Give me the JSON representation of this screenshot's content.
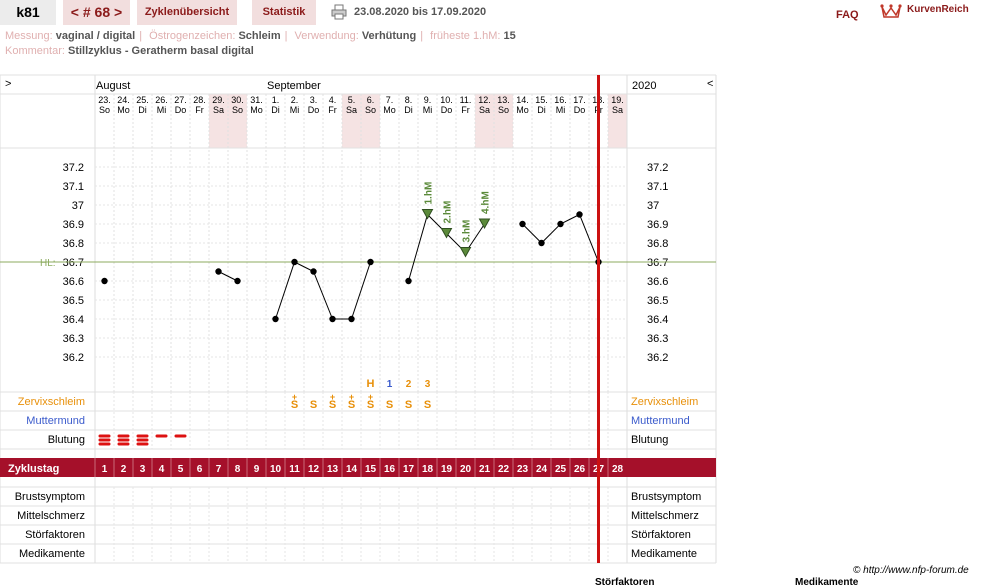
{
  "header": {
    "user": "k81",
    "cycle_nav": "< # 68 >",
    "tab_overview": "Zyklenübersicht",
    "tab_statistics": "Statistik",
    "date_range": "23.08.2020 bis 17.09.2020",
    "faq": "FAQ",
    "brand": "KurvenReich"
  },
  "info": {
    "measurement_label": "Messung:",
    "measurement_value": "vaginal / digital",
    "estrogen_label": "Östrogenzeichen:",
    "estrogen_value": "Schleim",
    "usage_label": "Verwendung:",
    "usage_value": "Verhütung",
    "earliest_label": "früheste 1.hM:",
    "earliest_value": "15",
    "comment_label": "Kommentar:",
    "comment_value": "Stillzyklus - Geratherm basal digital"
  },
  "grid": {
    "left_arrow": ">",
    "right_arrow": "<",
    "month_left": "August",
    "month_mid": "September",
    "year": "2020",
    "dates": [
      {
        "d": "23.",
        "w": "So",
        "weekend": false
      },
      {
        "d": "24.",
        "w": "Mo",
        "weekend": false
      },
      {
        "d": "25.",
        "w": "Di",
        "weekend": false
      },
      {
        "d": "26.",
        "w": "Mi",
        "weekend": false
      },
      {
        "d": "27.",
        "w": "Do",
        "weekend": false
      },
      {
        "d": "28.",
        "w": "Fr",
        "weekend": false
      },
      {
        "d": "29.",
        "w": "Sa",
        "weekend": true
      },
      {
        "d": "30.",
        "w": "So",
        "weekend": true
      },
      {
        "d": "31.",
        "w": "Mo",
        "weekend": false
      },
      {
        "d": "1.",
        "w": "Di",
        "weekend": false
      },
      {
        "d": "2.",
        "w": "Mi",
        "weekend": false
      },
      {
        "d": "3.",
        "w": "Do",
        "weekend": false
      },
      {
        "d": "4.",
        "w": "Fr",
        "weekend": false
      },
      {
        "d": "5.",
        "w": "Sa",
        "weekend": true
      },
      {
        "d": "6.",
        "w": "So",
        "weekend": true
      },
      {
        "d": "7.",
        "w": "Mo",
        "weekend": false
      },
      {
        "d": "8.",
        "w": "Di",
        "weekend": false
      },
      {
        "d": "9.",
        "w": "Mi",
        "weekend": false
      },
      {
        "d": "10.",
        "w": "Do",
        "weekend": false
      },
      {
        "d": "11.",
        "w": "Fr",
        "weekend": false
      },
      {
        "d": "12.",
        "w": "Sa",
        "weekend": true
      },
      {
        "d": "13.",
        "w": "So",
        "weekend": true
      },
      {
        "d": "14.",
        "w": "Mo",
        "weekend": false
      },
      {
        "d": "15.",
        "w": "Di",
        "weekend": false
      },
      {
        "d": "16.",
        "w": "Mi",
        "weekend": false
      },
      {
        "d": "17.",
        "w": "Do",
        "weekend": false
      },
      {
        "d": "18.",
        "w": "Fr",
        "weekend": false
      },
      {
        "d": "19.",
        "w": "Sa",
        "weekend": true
      }
    ],
    "temp_ticks": [
      "37.2",
      "37.1",
      "37",
      "36.9",
      "36.8",
      "36.7",
      "36.6",
      "36.5",
      "36.4",
      "36.3",
      "36.2"
    ],
    "hl_label": "HL:",
    "row_cervix": "Zervixschleim",
    "row_cervix_pos": "Muttermund",
    "row_bleeding": "Blutung",
    "cycle_day_label": "Zyklustag",
    "cycle_days": [
      "1",
      "2",
      "3",
      "4",
      "5",
      "6",
      "7",
      "8",
      "9",
      "10",
      "11",
      "12",
      "13",
      "14",
      "15",
      "16",
      "17",
      "18",
      "19",
      "20",
      "21",
      "22",
      "23",
      "24",
      "25",
      "26",
      "27",
      "28"
    ],
    "bottom_rows": [
      "Brustsymptom",
      "Mittelschmerz",
      "Störfaktoren",
      "Medikamente"
    ],
    "hm_labels": [
      "1.hM",
      "2.hM",
      "3.hM",
      "4.hM"
    ],
    "mucus_peak_h": "H",
    "mucus_counts": [
      "1",
      "2",
      "3"
    ],
    "mucus_symbol": "S",
    "copyright": "© http://www.nfp-forum.de",
    "footer_left": "Störfaktoren",
    "footer_right": "Medikamente"
  },
  "colors": {
    "accent": "#a5102a",
    "tab_bg": "#f2dede",
    "weekend_bg": "#f5e3e3",
    "coverline": "#8cab5f",
    "hm_green": "#5b8a3a",
    "mucus_orange": "#e8900a",
    "cervix_blue": "#3b5bcc",
    "blood_red": "#dd1111"
  },
  "chart_data": {
    "type": "line",
    "title": "",
    "xlabel": "Zyklustag",
    "ylabel": "",
    "ylim": [
      36.2,
      37.2
    ],
    "coverline": 36.7,
    "points": [
      {
        "day": 1,
        "t": 36.6
      },
      {
        "day": 7,
        "t": 36.65
      },
      {
        "day": 8,
        "t": 36.6
      },
      {
        "day": 10,
        "t": 36.4
      },
      {
        "day": 11,
        "t": 36.7
      },
      {
        "day": 12,
        "t": 36.65
      },
      {
        "day": 13,
        "t": 36.4
      },
      {
        "day": 14,
        "t": 36.4
      },
      {
        "day": 15,
        "t": 36.7
      },
      {
        "day": 17,
        "t": 36.6
      },
      {
        "day": 18,
        "t": 36.95
      },
      {
        "day": 19,
        "t": 36.85
      },
      {
        "day": 20,
        "t": 36.75
      },
      {
        "day": 21,
        "t": 36.9
      },
      {
        "day": 23,
        "t": 36.9
      },
      {
        "day": 24,
        "t": 36.8
      },
      {
        "day": 25,
        "t": 36.9
      },
      {
        "day": 26,
        "t": 36.95
      },
      {
        "day": 27,
        "t": 36.7
      }
    ],
    "segments": [
      [
        7,
        8
      ],
      [
        10,
        11,
        12,
        13,
        14,
        15
      ],
      [
        17,
        18,
        19,
        20,
        21
      ],
      [
        23,
        24,
        25,
        26,
        27
      ]
    ],
    "hm_days": [
      18,
      19,
      20,
      21
    ],
    "mucus_days": [
      11,
      12,
      13,
      14,
      15,
      16,
      17,
      18
    ],
    "mucus_plus_days": [
      11,
      13,
      14,
      15
    ],
    "mucus_peak_day": 15,
    "mucus_count_days": [
      16,
      17,
      18
    ],
    "bleeding": [
      {
        "day": 1,
        "level": 3
      },
      {
        "day": 2,
        "level": 3
      },
      {
        "day": 3,
        "level": 3
      },
      {
        "day": 4,
        "level": 1
      },
      {
        "day": 5,
        "level": 1
      }
    ],
    "current_day_line": 26.5
  }
}
